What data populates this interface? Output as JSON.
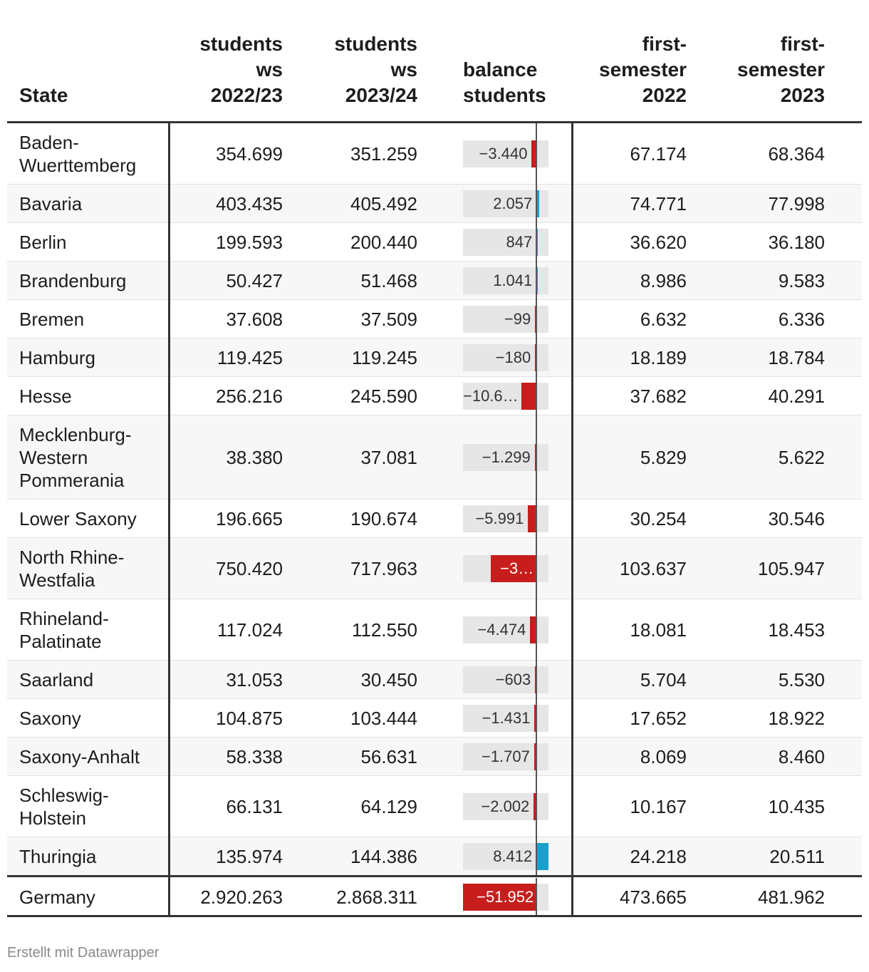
{
  "chart_data": {
    "type": "table",
    "columns": [
      "State",
      "students\nws\n2022/23",
      "students\nws\n2023/24",
      "balance\nstudents",
      "first-\nsemester\n2022",
      "first-\nsemester\n2023"
    ],
    "rows": [
      {
        "state": "Baden-\nWuerttemberg",
        "ws2022": "354.699",
        "ws2023": "351.259",
        "balance": -3440,
        "balance_label": "−3.440",
        "fs2022": "67.174",
        "fs2023": "68.364"
      },
      {
        "state": "Bavaria",
        "ws2022": "403.435",
        "ws2023": "405.492",
        "balance": 2057,
        "balance_label": "2.057",
        "fs2022": "74.771",
        "fs2023": "77.998"
      },
      {
        "state": "Berlin",
        "ws2022": "199.593",
        "ws2023": "200.440",
        "balance": 847,
        "balance_label": "847",
        "fs2022": "36.620",
        "fs2023": "36.180"
      },
      {
        "state": "Brandenburg",
        "ws2022": "50.427",
        "ws2023": "51.468",
        "balance": 1041,
        "balance_label": "1.041",
        "fs2022": "8.986",
        "fs2023": "9.583"
      },
      {
        "state": "Bremen",
        "ws2022": "37.608",
        "ws2023": "37.509",
        "balance": -99,
        "balance_label": "−99",
        "fs2022": "6.632",
        "fs2023": "6.336"
      },
      {
        "state": "Hamburg",
        "ws2022": "119.425",
        "ws2023": "119.245",
        "balance": -180,
        "balance_label": "−180",
        "fs2022": "18.189",
        "fs2023": "18.784"
      },
      {
        "state": "Hesse",
        "ws2022": "256.216",
        "ws2023": "245.590",
        "balance": -10626,
        "balance_label": "−10.6…",
        "fs2022": "37.682",
        "fs2023": "40.291"
      },
      {
        "state": "Mecklenburg-\nWestern\nPommerania",
        "ws2022": "38.380",
        "ws2023": "37.081",
        "balance": -1299,
        "balance_label": "−1.299",
        "fs2022": "5.829",
        "fs2023": "5.622"
      },
      {
        "state": "Lower Saxony",
        "ws2022": "196.665",
        "ws2023": "190.674",
        "balance": -5991,
        "balance_label": "−5.991",
        "fs2022": "30.254",
        "fs2023": "30.546"
      },
      {
        "state": "North Rhine-\nWestfalia",
        "ws2022": "750.420",
        "ws2023": "717.963",
        "balance": -32457,
        "balance_label": "−3…",
        "fs2022": "103.637",
        "fs2023": "105.947"
      },
      {
        "state": "Rhineland-\nPalatinate",
        "ws2022": "117.024",
        "ws2023": "112.550",
        "balance": -4474,
        "balance_label": "−4.474",
        "fs2022": "18.081",
        "fs2023": "18.453"
      },
      {
        "state": "Saarland",
        "ws2022": "31.053",
        "ws2023": "30.450",
        "balance": -603,
        "balance_label": "−603",
        "fs2022": "5.704",
        "fs2023": "5.530"
      },
      {
        "state": "Saxony",
        "ws2022": "104.875",
        "ws2023": "103.444",
        "balance": -1431,
        "balance_label": "−1.431",
        "fs2022": "17.652",
        "fs2023": "18.922"
      },
      {
        "state": "Saxony-Anhalt",
        "ws2022": "58.338",
        "ws2023": "56.631",
        "balance": -1707,
        "balance_label": "−1.707",
        "fs2022": "8.069",
        "fs2023": "8.460"
      },
      {
        "state": "Schleswig-\nHolstein",
        "ws2022": "66.131",
        "ws2023": "64.129",
        "balance": -2002,
        "balance_label": "−2.002",
        "fs2022": "10.167",
        "fs2023": "10.435"
      },
      {
        "state": "Thuringia",
        "ws2022": "135.974",
        "ws2023": "144.386",
        "balance": 8412,
        "balance_label": "8.412",
        "fs2022": "24.218",
        "fs2023": "20.511"
      }
    ],
    "total": {
      "state": "Germany",
      "ws2022": "2.920.263",
      "ws2023": "2.868.311",
      "balance": -51952,
      "balance_label": "−51.952",
      "fs2022": "473.665",
      "fs2023": "481.962"
    },
    "balance_range": [
      -51952,
      8412
    ],
    "colors": {
      "negative": "#c71e1d",
      "positive": "#18a1cd"
    }
  },
  "footer": "Erstellt mit Datawrapper"
}
